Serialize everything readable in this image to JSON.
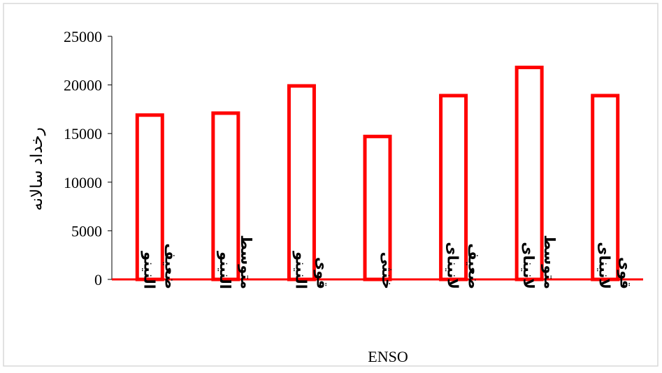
{
  "chart_data": {
    "type": "bar",
    "categories": [
      [
        "النینو",
        "ضعیف"
      ],
      [
        "النینو",
        "متوسط"
      ],
      [
        "النینو",
        "قوی"
      ],
      [
        "خنثی"
      ],
      [
        "لانینای",
        "ضعیف"
      ],
      [
        "لانینای",
        "متوسط"
      ],
      [
        "لانینای",
        "قوی"
      ]
    ],
    "values": [
      16900,
      17100,
      19900,
      14700,
      18900,
      21800,
      18900
    ],
    "title": "",
    "xlabel": "ENSO",
    "ylabel": "رخداد سالانه",
    "ylim": [
      0,
      25000
    ],
    "yticks": [
      0,
      5000,
      10000,
      15000,
      20000,
      25000
    ],
    "grid": false,
    "legend": "none",
    "bar_fill": "#ffffff",
    "bar_stroke": "#ff0000",
    "frame_color": "#d9d9d9"
  }
}
